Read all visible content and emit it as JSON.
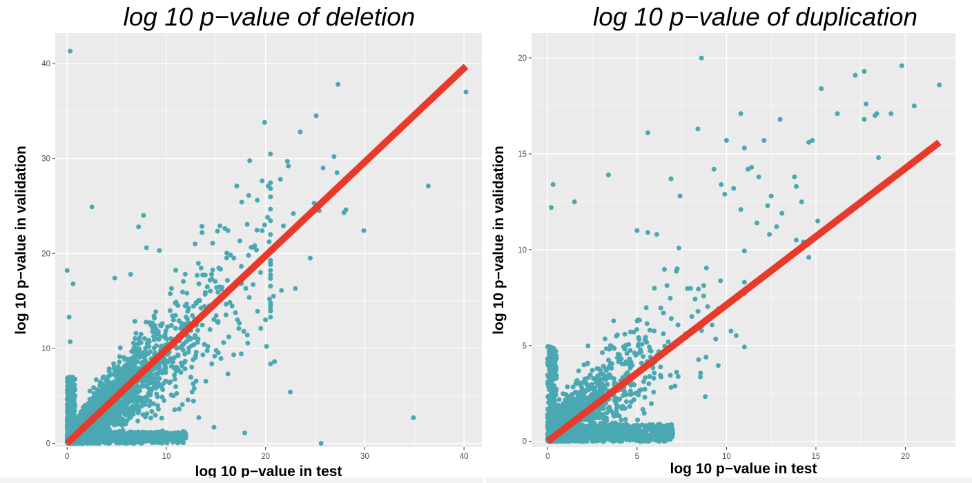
{
  "chart_data": [
    {
      "type": "scatter",
      "title": "log 10 p−value of deletion",
      "xlabel": "log 10 p−value in test",
      "ylabel": "log 10 p−value in validation",
      "xlim": [
        -1.2,
        41.8
      ],
      "ylim": [
        -0.4,
        43.2
      ],
      "xticks": [
        0,
        10,
        20,
        30,
        40
      ],
      "yticks": [
        0,
        10,
        20,
        30,
        40
      ],
      "x_tick_labels": [
        "0",
        "10",
        "20",
        "30",
        "40"
      ],
      "y_tick_labels": [
        "0",
        "10",
        "20",
        "30",
        "40"
      ],
      "grid": true,
      "point_color": "#4AA8B3",
      "line_color": "#E83A2A",
      "panel_background": "#EBEBEB",
      "reference_line": {
        "x": [
          0,
          40.2
        ],
        "y": [
          0,
          39.7
        ]
      },
      "bulk_cloud": {
        "x_max": 20,
        "y_max": 20,
        "n_points": 2600,
        "note_spread": "dense cloud along diagonal"
      },
      "points": {
        "x": [
          0.3,
          40.2,
          27.3,
          25.1,
          23.5,
          19.9,
          36.4,
          27.9,
          29.9,
          25.4,
          26.9,
          25.8,
          22.2,
          22.3,
          28.1,
          25.6,
          34.9,
          22.5,
          17.9,
          14.8,
          9.6,
          7.7,
          7.2,
          2.5,
          0.0,
          0.6,
          0.2,
          0.3,
          21.5,
          24.5,
          24.9,
          25.9,
          27.2,
          22.8,
          21.8,
          20.2,
          19.9,
          18.3,
          17.6,
          17.1,
          16.2,
          15.4,
          13.6,
          12.9,
          9.3,
          8.0,
          6.4,
          4.8,
          20.4,
          20.8,
          23.0,
          21.6,
          19.5,
          15.9,
          17.3,
          17.8,
          19.2,
          20.9,
          13.2,
          12.7,
          11.0,
          10.7,
          9.2,
          3.7,
          2.3,
          1.8,
          1.5
        ],
        "y": [
          41.3,
          37.0,
          37.8,
          34.5,
          32.8,
          33.8,
          27.1,
          24.3,
          22.4,
          24.5,
          30.2,
          29.0,
          29.7,
          29.2,
          24.6,
          0.0,
          2.7,
          5.4,
          1.1,
          1.7,
          1.3,
          24.0,
          22.8,
          24.9,
          18.2,
          16.8,
          13.3,
          10.7,
          27.8,
          19.5,
          25.3,
          25.5,
          28.5,
          24.2,
          22.9,
          23.8,
          23.0,
          26.1,
          25.4,
          27.1,
          22.4,
          22.9,
          22.2,
          21.0,
          20.3,
          20.6,
          17.8,
          17.4,
          15.2,
          15.5,
          16.3,
          16.1,
          18.0,
          15.7,
          12.1,
          11.8,
          13.9,
          8.6,
          11.0,
          8.8,
          7.6,
          5.0,
          3.6,
          6.1,
          5.5,
          4.0,
          3.2
        ]
      }
    },
    {
      "type": "scatter",
      "title": "log 10 p−value of duplication",
      "xlabel": "log 10 p−value in test",
      "ylabel": "log 10 p−value in validation",
      "xlim": [
        -0.9,
        22.8
      ],
      "ylim": [
        -0.3,
        21.3
      ],
      "xticks": [
        0,
        5,
        10,
        15,
        20
      ],
      "yticks": [
        0,
        5,
        10,
        15,
        20
      ],
      "x_tick_labels": [
        "0",
        "5",
        "10",
        "15",
        "20"
      ],
      "y_tick_labels": [
        "0",
        "5",
        "10",
        "15",
        "20"
      ],
      "grid": true,
      "point_color": "#4AA8B3",
      "line_color": "#E83A2A",
      "panel_background": "#EBEBEB",
      "reference_line": {
        "x": [
          0,
          21.9
        ],
        "y": [
          0,
          15.6
        ]
      },
      "bulk_cloud": {
        "x_max": 10,
        "y_max": 8,
        "n_points": 1400,
        "note_spread": "dense cloud near origin"
      },
      "points": {
        "x": [
          8.6,
          0.2,
          0.3,
          1.5,
          3.4,
          5.6,
          8.4,
          10.0,
          10.8,
          11.0,
          11.2,
          11.4,
          12.1,
          13.0,
          14.6,
          14.8,
          15.3,
          16.2,
          17.2,
          17.7,
          17.8,
          17.7,
          18.3,
          18.4,
          19.2,
          19.8,
          20.5,
          21.9,
          18.5,
          13.8,
          13.9,
          14.2,
          12.3,
          13.1,
          12.8,
          10.4,
          9.7,
          6.1,
          5.6,
          5.0,
          6.9,
          7.4,
          9.3,
          11.8,
          12.5,
          14.6,
          13.9,
          14.3,
          10.8,
          9.9,
          11.7,
          12.4,
          15.1
        ],
        "y": [
          20.0,
          12.2,
          13.4,
          12.5,
          13.9,
          16.1,
          16.3,
          15.7,
          17.1,
          15.3,
          14.2,
          14.3,
          15.7,
          16.8,
          15.6,
          15.7,
          18.4,
          17.1,
          19.1,
          19.3,
          17.6,
          16.8,
          17.0,
          17.1,
          17.1,
          19.6,
          17.5,
          18.6,
          14.8,
          13.8,
          13.3,
          12.5,
          12.3,
          11.9,
          11.2,
          13.2,
          13.4,
          10.8,
          10.9,
          11.0,
          13.7,
          12.8,
          14.2,
          13.8,
          12.8,
          9.6,
          10.5,
          10.4,
          12.1,
          12.9,
          11.4,
          10.8,
          11.5
        ]
      }
    }
  ]
}
